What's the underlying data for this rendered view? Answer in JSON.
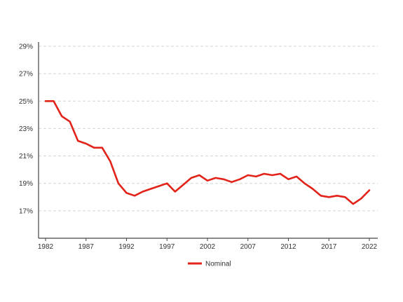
{
  "chart_data": {
    "type": "line",
    "title": "",
    "xlabel": "",
    "ylabel": "",
    "x_ticks": [
      "1982",
      "1987",
      "1992",
      "1997",
      "2002",
      "2007",
      "2012",
      "2017",
      "2022"
    ],
    "y_ticks": [
      "17%",
      "19%",
      "21%",
      "23%",
      "25%",
      "27%",
      "29%"
    ],
    "xlim": [
      1982,
      2022
    ],
    "ylim": [
      15,
      29
    ],
    "grid": "horizontal-dashed",
    "legend_position": "bottom-center",
    "series": [
      {
        "name": "Nominal",
        "color": "#e2231a",
        "x": [
          1982,
          1983,
          1984,
          1985,
          1986,
          1987,
          1988,
          1989,
          1990,
          1991,
          1992,
          1993,
          1994,
          1995,
          1996,
          1997,
          1998,
          1999,
          2000,
          2001,
          2002,
          2003,
          2004,
          2005,
          2006,
          2007,
          2008,
          2009,
          2010,
          2011,
          2012,
          2013,
          2014,
          2015,
          2016,
          2017,
          2018,
          2019,
          2020,
          2021,
          2022
        ],
        "y": [
          25.0,
          25.0,
          23.9,
          23.5,
          22.1,
          21.9,
          21.6,
          21.6,
          20.6,
          19.0,
          18.3,
          18.1,
          18.4,
          18.6,
          18.8,
          19.0,
          18.4,
          18.9,
          19.4,
          19.6,
          19.2,
          19.4,
          19.3,
          19.1,
          19.3,
          19.6,
          19.5,
          19.7,
          19.6,
          19.7,
          19.3,
          19.5,
          19.0,
          18.6,
          18.1,
          18.0,
          18.1,
          18.0,
          17.5,
          17.9,
          18.5
        ]
      }
    ]
  }
}
